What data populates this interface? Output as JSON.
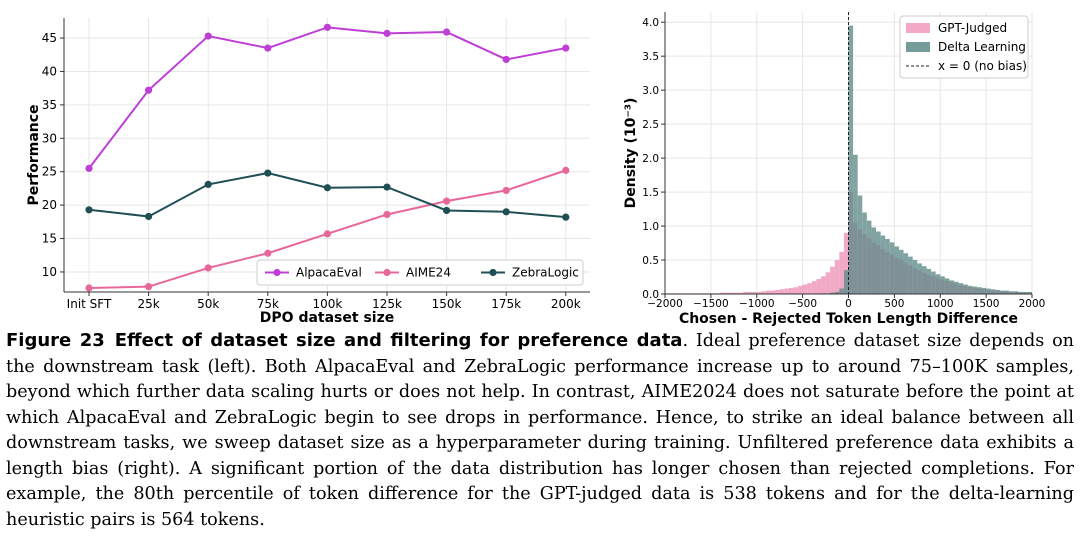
{
  "chart_data": [
    {
      "type": "line",
      "title": "",
      "xlabel": "DPO dataset size",
      "ylabel": "Performance",
      "categories": [
        "Init SFT",
        "25k",
        "50k",
        "75k",
        "100k",
        "125k",
        "150k",
        "175k",
        "200k"
      ],
      "yticks": [
        10,
        15,
        20,
        25,
        30,
        35,
        40,
        45
      ],
      "ylim": [
        7,
        48
      ],
      "grid": true,
      "legend_position": "bottom-right",
      "series": [
        {
          "name": "AlpacaEval",
          "color": "#bf3fd6",
          "values": [
            25.5,
            37.2,
            45.3,
            43.5,
            46.6,
            45.7,
            45.9,
            41.8,
            43.5
          ]
        },
        {
          "name": "AIME24",
          "color": "#e8679b",
          "values": [
            7.6,
            7.8,
            10.6,
            12.8,
            15.7,
            18.6,
            20.6,
            22.2,
            25.2
          ]
        },
        {
          "name": "ZebraLogic",
          "color": "#1f4f55",
          "values": [
            19.3,
            18.3,
            23.1,
            24.8,
            22.6,
            22.7,
            19.2,
            19.0,
            18.2
          ]
        }
      ]
    },
    {
      "type": "histogram",
      "title": "",
      "xlabel": "Chosen - Rejected Token Length Difference",
      "ylabel": "Density (10⁻³)",
      "xticks": [
        -2000,
        -1500,
        -1000,
        -500,
        0,
        500,
        1000,
        1500,
        2000
      ],
      "xtick_labels": [
        "−2000",
        "−1500",
        "−1000",
        "−500",
        "0",
        "500",
        "1000",
        "1500",
        "2000"
      ],
      "yticks": [
        0.0,
        0.5,
        1.0,
        1.5,
        2.0,
        2.5,
        3.0,
        3.5,
        4.0
      ],
      "ytick_labels": [
        "0.0",
        "0.5",
        "1.0",
        "1.5",
        "2.0",
        "2.5",
        "3.0",
        "3.5",
        "4.0"
      ],
      "xlim": [
        -2000,
        2000
      ],
      "ylim": [
        0,
        4.15
      ],
      "grid": true,
      "legend_position": "top-right",
      "bin_width": 50,
      "bin_centers": [
        -1975,
        -1925,
        -1875,
        -1825,
        -1775,
        -1725,
        -1675,
        -1625,
        -1575,
        -1525,
        -1475,
        -1425,
        -1375,
        -1325,
        -1275,
        -1225,
        -1175,
        -1125,
        -1075,
        -1025,
        -975,
        -925,
        -875,
        -825,
        -775,
        -725,
        -675,
        -625,
        -575,
        -525,
        -475,
        -425,
        -375,
        -325,
        -275,
        -225,
        -175,
        -125,
        -75,
        -25,
        25,
        75,
        125,
        175,
        225,
        275,
        325,
        375,
        425,
        475,
        525,
        575,
        625,
        675,
        725,
        775,
        825,
        875,
        925,
        975,
        1025,
        1075,
        1125,
        1175,
        1225,
        1275,
        1325,
        1375,
        1425,
        1475,
        1525,
        1575,
        1625,
        1675,
        1725,
        1775,
        1825,
        1875,
        1925,
        1975
      ],
      "series": [
        {
          "name": "GPT-Judged",
          "color": "#f0a0bf",
          "values": [
            0.01,
            0.01,
            0.01,
            0.01,
            0.01,
            0.01,
            0.01,
            0.01,
            0.01,
            0.01,
            0.01,
            0.01,
            0.02,
            0.02,
            0.02,
            0.02,
            0.02,
            0.03,
            0.03,
            0.03,
            0.03,
            0.04,
            0.05,
            0.05,
            0.06,
            0.07,
            0.08,
            0.09,
            0.1,
            0.12,
            0.14,
            0.16,
            0.19,
            0.22,
            0.26,
            0.32,
            0.4,
            0.5,
            0.62,
            0.9,
            1.5,
            1.05,
            0.95,
            0.88,
            0.82,
            0.76,
            0.72,
            0.66,
            0.62,
            0.58,
            0.53,
            0.5,
            0.45,
            0.42,
            0.38,
            0.35,
            0.31,
            0.28,
            0.26,
            0.23,
            0.21,
            0.19,
            0.17,
            0.15,
            0.13,
            0.12,
            0.1,
            0.09,
            0.08,
            0.07,
            0.06,
            0.05,
            0.05,
            0.04,
            0.04,
            0.03,
            0.03,
            0.03,
            0.02,
            0.02
          ]
        },
        {
          "name": "Delta Learning",
          "color": "#5e8a89",
          "values": [
            0,
            0,
            0,
            0,
            0,
            0,
            0,
            0,
            0,
            0,
            0,
            0,
            0,
            0,
            0,
            0,
            0,
            0,
            0,
            0,
            0,
            0,
            0,
            0,
            0,
            0,
            0,
            0,
            0,
            0,
            0,
            0,
            0,
            0,
            0.01,
            0.01,
            0.02,
            0.03,
            0.08,
            0.35,
            3.95,
            2.05,
            1.45,
            1.2,
            1.08,
            0.98,
            0.92,
            0.86,
            0.81,
            0.76,
            0.7,
            0.65,
            0.6,
            0.55,
            0.5,
            0.45,
            0.41,
            0.37,
            0.33,
            0.29,
            0.26,
            0.23,
            0.2,
            0.18,
            0.16,
            0.14,
            0.12,
            0.11,
            0.1,
            0.09,
            0.08,
            0.07,
            0.06,
            0.05,
            0.05,
            0.04,
            0.04,
            0.03,
            0.03,
            0.03
          ]
        }
      ],
      "reference_line": {
        "name": "x = 0 (no bias)",
        "x": 0
      }
    }
  ],
  "caption": {
    "number": "Figure 23",
    "title": "Effect of dataset size and filtering for preference data",
    "text": ". Ideal preference dataset size depends on the downstream task (left). Both AlpacaEval and ZebraLogic performance increase up to around 75–100K samples, beyond which further data scaling hurts or does not help. In contrast, AIME2024 does not saturate before the point at which AlpacaEval and ZebraLogic begin to see drops in performance. Hence, to strike an ideal balance between all downstream tasks, we sweep dataset size as a hyperparameter during training. Unfiltered preference data exhibits a length bias (right). A significant portion of the data distribution has longer chosen than rejected completions. For example, the 80th percentile of token difference for the GPT-judged data is 538 tokens and for the delta-learning heuristic pairs is 564 tokens."
  }
}
